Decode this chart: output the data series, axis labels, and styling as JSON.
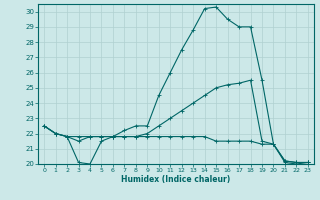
{
  "xlabel": "Humidex (Indice chaleur)",
  "ylabel": "",
  "background_color": "#cce8e8",
  "grid_color": "#b0d0d0",
  "line_color": "#006666",
  "xlim": [
    -0.5,
    23.5
  ],
  "ylim": [
    20,
    30.5
  ],
  "yticks": [
    20,
    21,
    22,
    23,
    24,
    25,
    26,
    27,
    28,
    29,
    30
  ],
  "xticks": [
    0,
    1,
    2,
    3,
    4,
    5,
    6,
    7,
    8,
    9,
    10,
    11,
    12,
    13,
    14,
    15,
    16,
    17,
    18,
    19,
    20,
    21,
    22,
    23
  ],
  "line1_x": [
    0,
    1,
    2,
    3,
    4,
    5,
    6,
    7,
    8,
    9,
    10,
    11,
    12,
    13,
    14,
    15,
    16,
    17,
    18,
    19,
    20,
    21,
    22,
    23
  ],
  "line1_y": [
    22.5,
    22.0,
    21.8,
    20.1,
    20.0,
    21.5,
    21.8,
    22.2,
    22.5,
    22.5,
    24.5,
    26.0,
    27.5,
    28.8,
    30.2,
    30.3,
    29.5,
    29.0,
    29.0,
    25.5,
    21.3,
    20.1,
    20.0,
    20.1
  ],
  "line2_x": [
    0,
    1,
    2,
    3,
    4,
    5,
    6,
    7,
    8,
    9,
    10,
    11,
    12,
    13,
    14,
    15,
    16,
    17,
    18,
    19,
    20,
    21,
    22,
    23
  ],
  "line2_y": [
    22.5,
    22.0,
    21.8,
    21.5,
    21.8,
    21.8,
    21.8,
    21.8,
    21.8,
    22.0,
    22.5,
    23.0,
    23.5,
    24.0,
    24.5,
    25.0,
    25.2,
    25.3,
    25.5,
    21.5,
    21.3,
    20.2,
    20.1,
    20.1
  ],
  "line3_x": [
    0,
    1,
    2,
    3,
    4,
    5,
    6,
    7,
    8,
    9,
    10,
    11,
    12,
    13,
    14,
    15,
    16,
    17,
    18,
    19,
    20,
    21,
    22,
    23
  ],
  "line3_y": [
    22.5,
    22.0,
    21.8,
    21.8,
    21.8,
    21.8,
    21.8,
    21.8,
    21.8,
    21.8,
    21.8,
    21.8,
    21.8,
    21.8,
    21.8,
    21.5,
    21.5,
    21.5,
    21.5,
    21.3,
    21.3,
    20.2,
    20.1,
    20.1
  ]
}
